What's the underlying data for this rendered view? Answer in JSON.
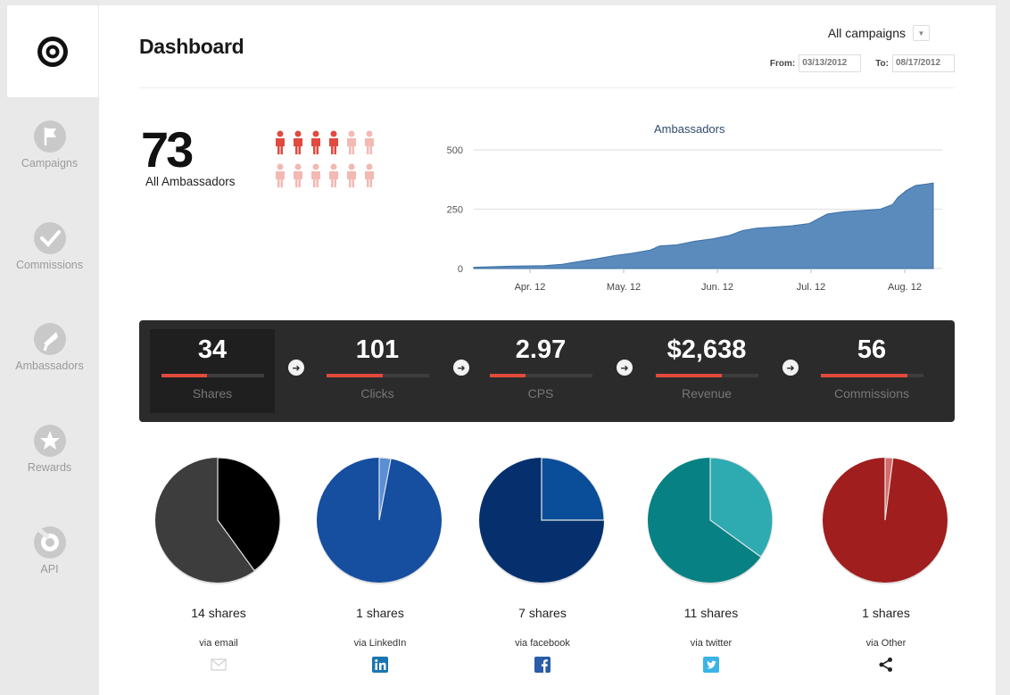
{
  "sidebar": {
    "logo": "target-logo",
    "items": [
      {
        "label": "Campaigns",
        "icon": "flag-icon"
      },
      {
        "label": "Commissions",
        "icon": "check-icon"
      },
      {
        "label": "Ambassadors",
        "icon": "megaphone-icon"
      },
      {
        "label": "Rewards",
        "icon": "star-icon"
      },
      {
        "label": "API",
        "icon": "api-icon"
      }
    ]
  },
  "header": {
    "title": "Dashboard",
    "campaign_select": "All campaigns",
    "from_label": "From:",
    "from_date": "03/13/2012",
    "to_label": "To:",
    "to_date": "08/17/2012"
  },
  "ambassadors": {
    "count": "73",
    "label": "All Ambassadors",
    "people_total": 12,
    "people_highlighted": 4
  },
  "chart_data": {
    "type": "area",
    "title": "Ambassadors",
    "ylim": [
      0,
      500
    ],
    "yticks": [
      "500",
      "250",
      "0"
    ],
    "xticks": [
      "Apr. 12",
      "May. 12",
      "Jun. 12",
      "Jul. 12",
      "Aug. 12"
    ],
    "series": [
      {
        "name": "Ambassadors",
        "x_days": [
          0,
          20,
          40,
          50,
          60,
          70,
          80,
          90,
          100,
          105,
          115,
          125,
          135,
          145,
          152,
          160,
          170,
          180,
          190,
          200,
          205,
          210,
          220,
          230,
          237,
          240,
          245,
          250,
          255,
          260
        ],
        "values": [
          5,
          10,
          12,
          18,
          30,
          42,
          55,
          65,
          78,
          95,
          100,
          115,
          125,
          140,
          160,
          170,
          175,
          180,
          190,
          230,
          235,
          240,
          245,
          250,
          270,
          300,
          330,
          350,
          355,
          360
        ]
      }
    ]
  },
  "stats": [
    {
      "value": "34",
      "label": "Shares",
      "fill": 0.45
    },
    {
      "value": "101",
      "label": "Clicks",
      "fill": 0.55
    },
    {
      "value": "2.97",
      "label": "CPS",
      "fill": 0.35
    },
    {
      "value": "$2,638",
      "label": "Revenue",
      "fill": 0.65
    },
    {
      "value": "56",
      "label": "Commissions",
      "fill": 0.85
    }
  ],
  "stats_arrow": "➜",
  "shares": [
    {
      "count": "14 shares",
      "via": "via email",
      "icon": "email-icon",
      "colors": [
        "#000000",
        "#3d3d3d"
      ],
      "fraction": 0.4,
      "icon_color": "#cfcfcf"
    },
    {
      "count": "1 shares",
      "via": "via LinkedIn",
      "icon": "linkedin-icon",
      "colors": [
        "#5a8fd6",
        "#164ea0"
      ],
      "fraction": 0.03,
      "icon_color": "#1a75b3"
    },
    {
      "count": "7 shares",
      "via": "via facebook",
      "icon": "facebook-icon",
      "colors": [
        "#0a4d98",
        "#05306d"
      ],
      "fraction": 0.25,
      "icon_color": "#2a5ca8"
    },
    {
      "count": "11 shares",
      "via": "via twitter",
      "icon": "twitter-icon",
      "colors": [
        "#2eaab1",
        "#078183"
      ],
      "fraction": 0.35,
      "icon_color": "#3ab4e6"
    },
    {
      "count": "1 shares",
      "via": "via Other",
      "icon": "share-icon",
      "colors": [
        "#d66a6a",
        "#a01e1e"
      ],
      "fraction": 0.02,
      "icon_color": "#222222"
    }
  ]
}
